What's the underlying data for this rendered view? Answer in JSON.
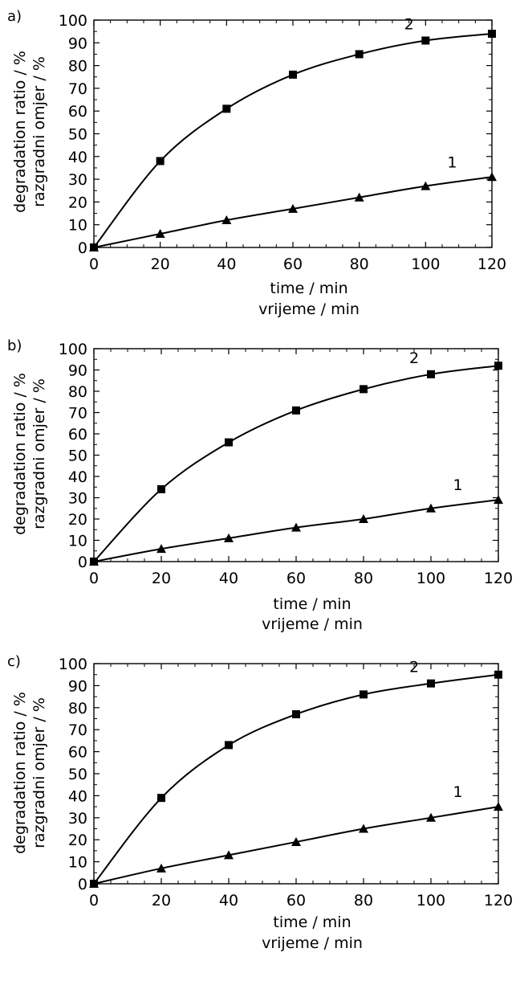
{
  "chart_data": [
    {
      "panel": "a)",
      "type": "line",
      "xlabel": [
        "time / min",
        "vrijeme / min"
      ],
      "ylabel": [
        "degradation ratio / %",
        "razgradni omjer / %"
      ],
      "xlim": [
        0,
        120
      ],
      "ylim": [
        0,
        100
      ],
      "x_ticks": [
        0,
        20,
        40,
        60,
        80,
        100,
        120
      ],
      "y_ticks": [
        0,
        10,
        20,
        30,
        40,
        50,
        60,
        70,
        80,
        90,
        100
      ],
      "grid": false,
      "series": [
        {
          "name": "1",
          "marker": "triangle",
          "x": [
            0,
            20,
            40,
            60,
            80,
            100,
            120
          ],
          "y": [
            0,
            6,
            12,
            17,
            22,
            27,
            31
          ]
        },
        {
          "name": "2",
          "marker": "square",
          "x": [
            0,
            20,
            40,
            60,
            80,
            100,
            120
          ],
          "y": [
            0,
            38,
            61,
            76,
            85,
            91,
            94
          ]
        }
      ]
    },
    {
      "panel": "b)",
      "type": "line",
      "xlabel": [
        "time / min",
        "vrijeme / min"
      ],
      "ylabel": [
        "degradation ratio / %",
        "razgradni omjer / %"
      ],
      "xlim": [
        0,
        120
      ],
      "ylim": [
        0,
        100
      ],
      "x_ticks": [
        0,
        20,
        40,
        60,
        80,
        100,
        120
      ],
      "y_ticks": [
        0,
        10,
        20,
        30,
        40,
        50,
        60,
        70,
        80,
        90,
        100
      ],
      "grid": false,
      "series": [
        {
          "name": "1",
          "marker": "triangle",
          "x": [
            0,
            20,
            40,
            60,
            80,
            100,
            120
          ],
          "y": [
            0,
            6,
            11,
            16,
            20,
            25,
            29
          ]
        },
        {
          "name": "2",
          "marker": "square",
          "x": [
            0,
            20,
            40,
            60,
            80,
            100,
            120
          ],
          "y": [
            0,
            34,
            56,
            71,
            81,
            88,
            92
          ]
        }
      ]
    },
    {
      "panel": "c)",
      "type": "line",
      "xlabel": [
        "time / min",
        "vrijeme / min"
      ],
      "ylabel": [
        "degradation ratio / %",
        "razgradni omjer / %"
      ],
      "xlim": [
        0,
        120
      ],
      "ylim": [
        0,
        100
      ],
      "x_ticks": [
        0,
        20,
        40,
        60,
        80,
        100,
        120
      ],
      "y_ticks": [
        0,
        10,
        20,
        30,
        40,
        50,
        60,
        70,
        80,
        90,
        100
      ],
      "grid": false,
      "series": [
        {
          "name": "1",
          "marker": "triangle",
          "x": [
            0,
            20,
            40,
            60,
            80,
            100,
            120
          ],
          "y": [
            0,
            7,
            13,
            19,
            25,
            30,
            35
          ]
        },
        {
          "name": "2",
          "marker": "square",
          "x": [
            0,
            20,
            40,
            60,
            80,
            100,
            120
          ],
          "y": [
            0,
            39,
            63,
            77,
            86,
            91,
            95
          ]
        }
      ]
    }
  ]
}
